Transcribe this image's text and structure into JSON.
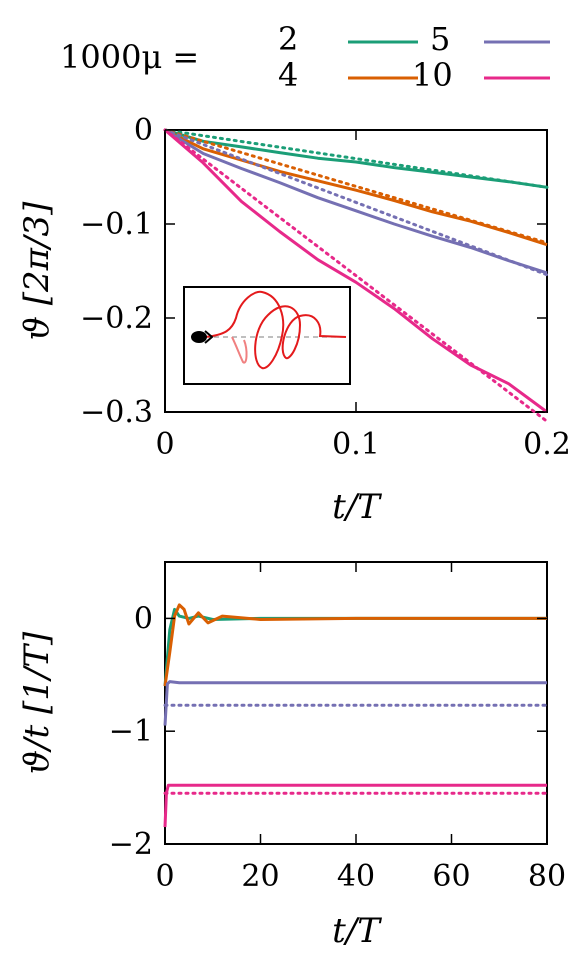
{
  "legend": {
    "prefix": "1000μ =",
    "entries": [
      {
        "label": "2",
        "color": "#1b9e77"
      },
      {
        "label": "4",
        "color": "#d95f02"
      },
      {
        "label": "5",
        "color": "#7570b3"
      },
      {
        "label": "10",
        "color": "#e7298a"
      }
    ]
  },
  "chart_data": [
    {
      "type": "line",
      "xlabel": "t/T",
      "ylabel": "ϑ [2π/3]",
      "xlim": [
        0,
        0.2
      ],
      "ylim": [
        -0.3,
        0
      ],
      "xticks": [
        0,
        0.1,
        0.2
      ],
      "xtick_labels": [
        "0",
        "0.1",
        "0.2"
      ],
      "yticks": [
        0,
        -0.1,
        -0.2,
        -0.3
      ],
      "ytick_labels": [
        "0",
        "−0.1",
        "−0.2",
        "−0.3"
      ],
      "grid": false,
      "series": [
        {
          "name": "2",
          "color": "#1b9e77",
          "style": "solid",
          "x": [
            0,
            0.02,
            0.04,
            0.06,
            0.08,
            0.1,
            0.12,
            0.14,
            0.16,
            0.18,
            0.2
          ],
          "y": [
            0,
            -0.012,
            -0.018,
            -0.024,
            -0.03,
            -0.034,
            -0.04,
            -0.045,
            -0.05,
            -0.055,
            -0.061
          ]
        },
        {
          "name": "2",
          "color": "#1b9e77",
          "style": "dotted",
          "x": [
            0,
            0.2
          ],
          "y": [
            0,
            -0.061
          ]
        },
        {
          "name": "4",
          "color": "#d95f02",
          "style": "solid",
          "x": [
            0,
            0.02,
            0.04,
            0.06,
            0.08,
            0.1,
            0.12,
            0.14,
            0.16,
            0.18,
            0.2
          ],
          "y": [
            0,
            -0.02,
            -0.032,
            -0.044,
            -0.054,
            -0.064,
            -0.075,
            -0.087,
            -0.097,
            -0.109,
            -0.122
          ]
        },
        {
          "name": "4",
          "color": "#d95f02",
          "style": "dotted",
          "x": [
            0,
            0.2
          ],
          "y": [
            0,
            -0.12
          ]
        },
        {
          "name": "5",
          "color": "#7570b3",
          "style": "solid",
          "x": [
            0,
            0.02,
            0.04,
            0.06,
            0.08,
            0.1,
            0.12,
            0.14,
            0.16,
            0.18,
            0.2
          ],
          "y": [
            0,
            -0.025,
            -0.041,
            -0.056,
            -0.072,
            -0.086,
            -0.1,
            -0.113,
            -0.125,
            -0.139,
            -0.152
          ]
        },
        {
          "name": "5",
          "color": "#7570b3",
          "style": "dotted",
          "x": [
            0,
            0.2
          ],
          "y": [
            0,
            -0.154
          ]
        },
        {
          "name": "10",
          "color": "#e7298a",
          "style": "solid",
          "x": [
            0,
            0.02,
            0.04,
            0.06,
            0.08,
            0.1,
            0.12,
            0.14,
            0.16,
            0.18,
            0.2
          ],
          "y": [
            0,
            -0.035,
            -0.076,
            -0.108,
            -0.138,
            -0.162,
            -0.19,
            -0.222,
            -0.25,
            -0.27,
            -0.3
          ]
        },
        {
          "name": "10",
          "color": "#e7298a",
          "style": "dotted",
          "x": [
            0,
            0.2
          ],
          "y": [
            0,
            -0.31
          ]
        }
      ]
    },
    {
      "type": "line",
      "xlabel": "t/T",
      "ylabel": "ϑ/t [1/T]",
      "xlim": [
        0,
        80
      ],
      "ylim": [
        -2,
        0.5
      ],
      "xticks": [
        0,
        20,
        40,
        60,
        80
      ],
      "xtick_labels": [
        "0",
        "20",
        "40",
        "60",
        "80"
      ],
      "yticks": [
        0,
        -1,
        -2
      ],
      "ytick_labels": [
        "0",
        "−1",
        "−2"
      ],
      "grid": false,
      "series": [
        {
          "name": "2",
          "color": "#1b9e77",
          "style": "solid",
          "x": [
            0,
            1,
            2,
            3,
            5,
            7,
            10,
            20,
            40,
            60,
            80
          ],
          "y": [
            -0.6,
            -0.1,
            0.08,
            0.02,
            0.0,
            0.02,
            -0.01,
            0.0,
            0.0,
            0.0,
            0.0
          ]
        },
        {
          "name": "4",
          "color": "#d95f02",
          "style": "solid",
          "x": [
            0,
            1,
            2,
            3,
            4,
            5,
            7,
            9,
            12,
            20,
            40,
            60,
            80
          ],
          "y": [
            -0.6,
            -0.3,
            0.02,
            0.12,
            0.08,
            -0.05,
            0.05,
            -0.04,
            0.02,
            -0.01,
            0.0,
            0.0,
            0.0
          ]
        },
        {
          "name": "5",
          "color": "#7570b3",
          "style": "solid",
          "x": [
            0,
            0.5,
            1,
            3,
            10,
            20,
            40,
            60,
            80
          ],
          "y": [
            -0.95,
            -0.58,
            -0.56,
            -0.57,
            -0.57,
            -0.57,
            -0.57,
            -0.57,
            -0.57
          ]
        },
        {
          "name": "5",
          "color": "#7570b3",
          "style": "dotted",
          "x": [
            0,
            80
          ],
          "y": [
            -0.77,
            -0.77
          ]
        },
        {
          "name": "10",
          "color": "#e7298a",
          "style": "solid",
          "x": [
            0,
            0.3,
            0.7,
            2,
            10,
            20,
            40,
            60,
            80
          ],
          "y": [
            -1.85,
            -1.55,
            -1.48,
            -1.48,
            -1.48,
            -1.48,
            -1.48,
            -1.48,
            -1.48
          ]
        },
        {
          "name": "10",
          "color": "#e7298a",
          "style": "dotted",
          "x": [
            0,
            80
          ],
          "y": [
            -1.55,
            -1.55
          ]
        }
      ]
    }
  ]
}
